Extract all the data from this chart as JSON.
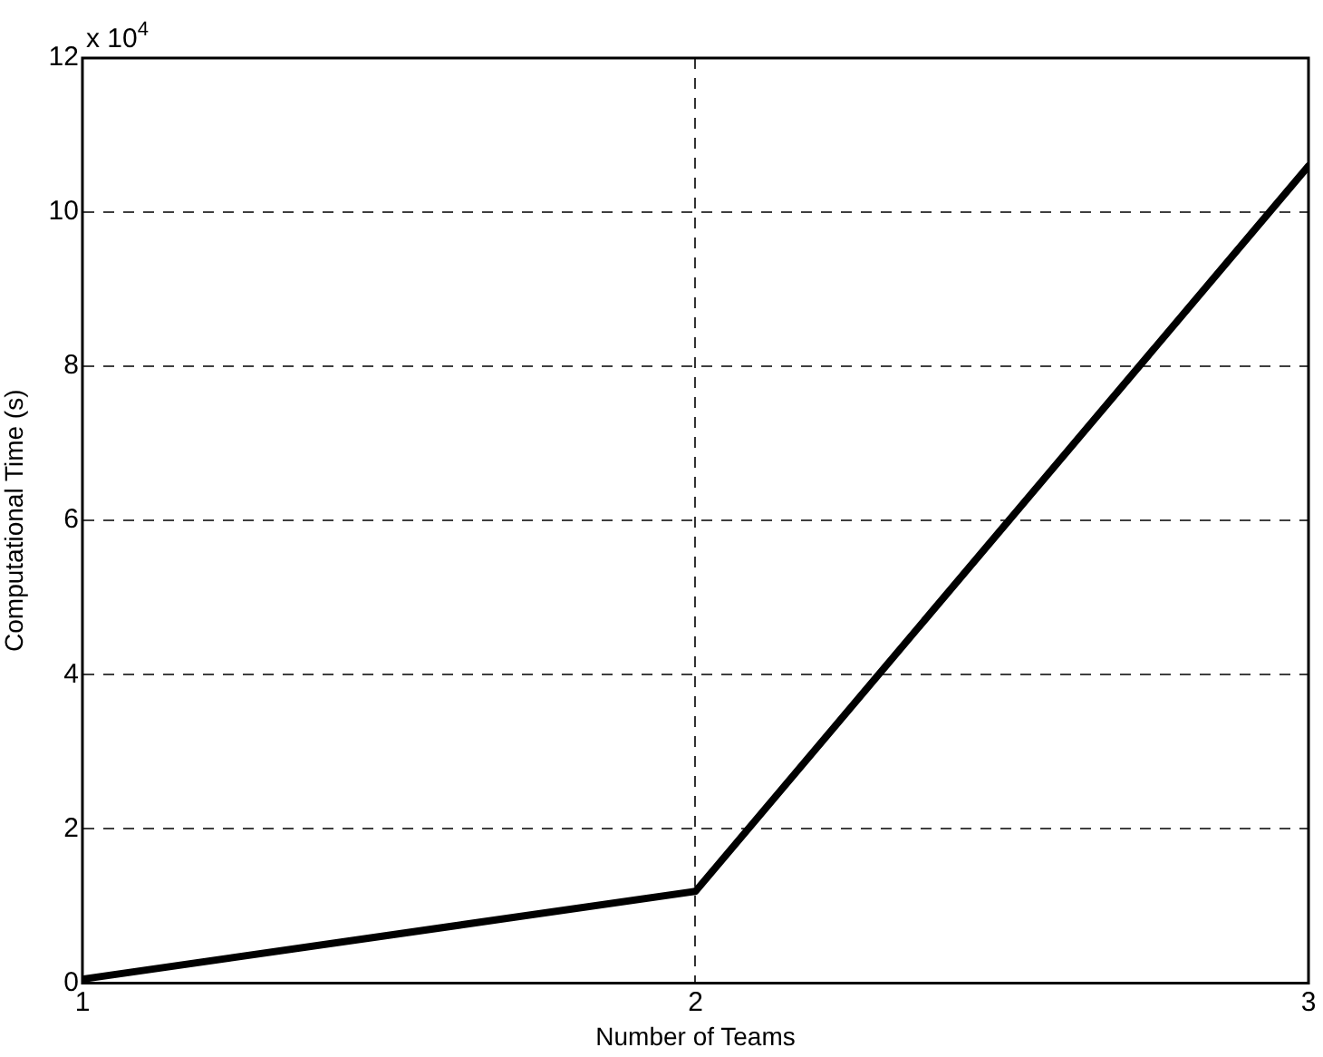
{
  "chart_data": {
    "type": "line",
    "xlabel": "Number of Teams",
    "ylabel": "Computational Time (s)",
    "annotations": [
      "x 10$^{4}$"
    ],
    "x": [
      1,
      2,
      3
    ],
    "series": [
      {
        "color": "#000000",
        "values": [
          0.05,
          1.19,
          10.6
        ]
      }
    ],
    "xlim": [
      1,
      3
    ],
    "xticks": [
      1,
      2,
      3
    ],
    "ylim": [
      0,
      12
    ],
    "yticks": [
      0,
      2,
      4,
      6,
      8,
      10,
      12
    ],
    "grid": true,
    "legend": false,
    "marker": "none",
    "line_style": "solid"
  }
}
